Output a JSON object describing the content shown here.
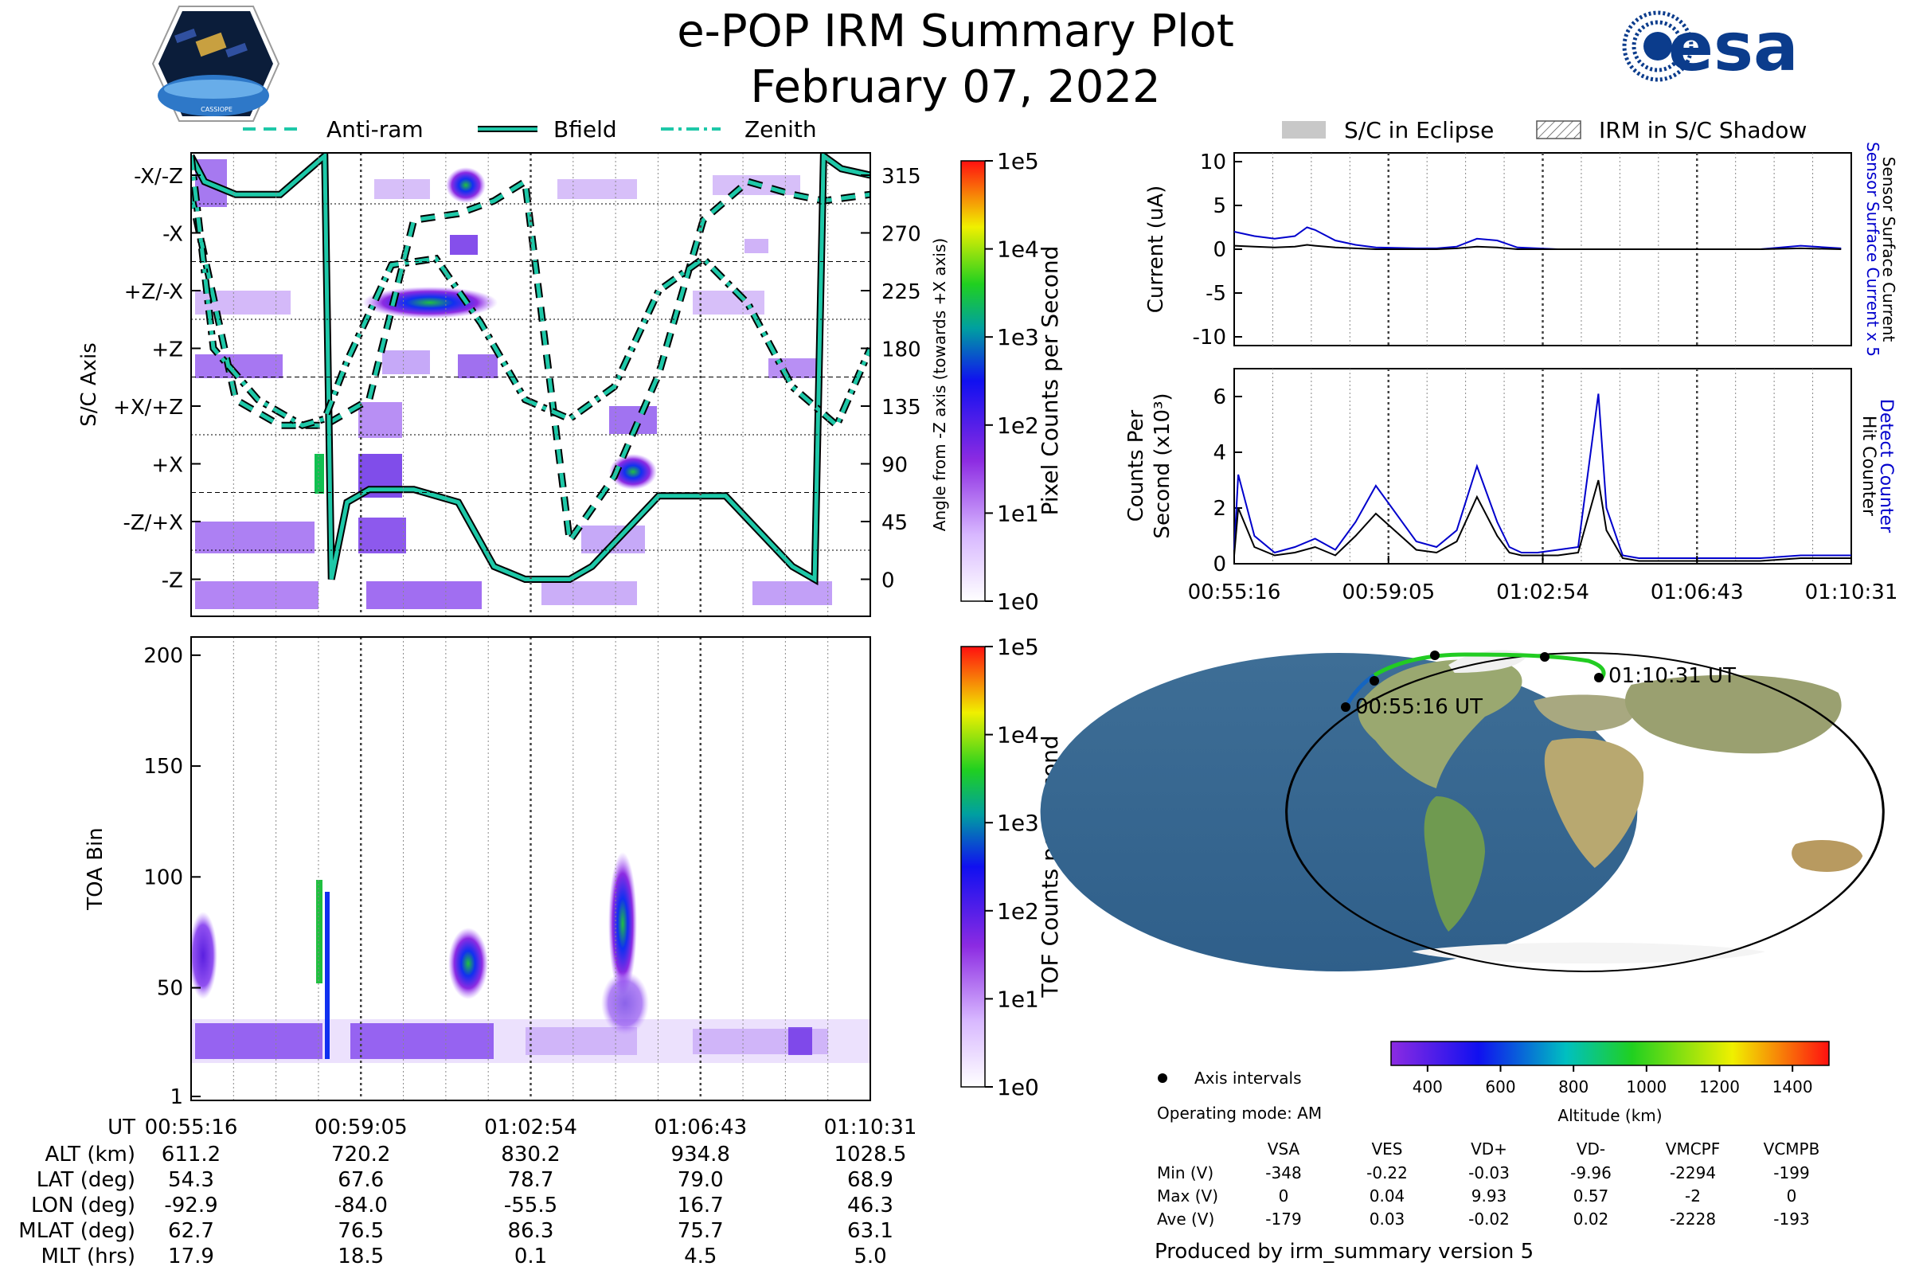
{
  "header": {
    "title": "e-POP IRM Summary Plot",
    "date": "February 07, 2022",
    "mission_logo_text": "CASSIOPE",
    "agency_logo_text": "esa"
  },
  "colors": {
    "accent_teal": "#1ec8a8",
    "eclipse_gray": "#c8c8c8",
    "surface_current": "#0000cc",
    "counter_blue": "#0000cc",
    "track_blue": "#1565c0",
    "track_green": "#22cc22"
  },
  "legends": {
    "left_top": [
      "Anti-ram",
      "Bfield",
      "Zenith"
    ],
    "right_top": [
      "S/C in Eclipse",
      "IRM in S/C Shadow"
    ]
  },
  "time_axis": {
    "ut_label": "UT",
    "ut_ticks": [
      "00:55:16",
      "00:59:05",
      "01:02:54",
      "01:06:43",
      "01:10:31"
    ],
    "rows": [
      {
        "label": "ALT (km)",
        "values": [
          "611.2",
          "720.2",
          "830.2",
          "934.8",
          "1028.5"
        ]
      },
      {
        "label": "LAT (deg)",
        "values": [
          "54.3",
          "67.6",
          "78.7",
          "79.0",
          "68.9"
        ]
      },
      {
        "label": "LON (deg)",
        "values": [
          "-92.9",
          "-84.0",
          "-55.5",
          "16.7",
          "46.3"
        ]
      },
      {
        "label": "MLAT (deg)",
        "values": [
          "62.7",
          "76.5",
          "86.3",
          "75.7",
          "63.1"
        ]
      },
      {
        "label": "MLT (hrs)",
        "values": [
          "17.9",
          "18.5",
          "0.1",
          "4.5",
          "5.0"
        ]
      }
    ]
  },
  "axis_panel": {
    "ylabel": "S/C Axis",
    "categories": [
      "-X/-Z",
      "-X",
      "+Z/-X",
      "+Z",
      "+X/+Z",
      "+X",
      "-Z/+X",
      "-Z"
    ],
    "right_ticks": [
      "315",
      "270",
      "225",
      "180",
      "135",
      "90",
      "45",
      "0"
    ],
    "right_label": "Angle from -Z axis (towards +X axis)",
    "colorbar_label": "Pixel Counts per Second",
    "colorbar_ticks": [
      "1e5",
      "1e4",
      "1e3",
      "1e2",
      "1e1",
      "1e0"
    ]
  },
  "toa_panel": {
    "ylabel": "TOA Bin",
    "yticks": [
      "200",
      "150",
      "100",
      "50",
      "1"
    ],
    "colorbar_label": "TOF Counts per Second",
    "colorbar_ticks": [
      "1e5",
      "1e4",
      "1e3",
      "1e2",
      "1e1",
      "1e0"
    ]
  },
  "current_panel": {
    "ylabel": "Current (uA)",
    "yticks": [
      "10",
      "5",
      "0",
      "-5",
      "-10"
    ],
    "right_label_blue": "Sensor Surface Current x 5",
    "right_label_black": "Sensor Surface Current"
  },
  "counts_panel": {
    "ylabel_line1": "Counts Per",
    "ylabel_line2": "Second (x10³)",
    "yticks": [
      "6",
      "4",
      "2",
      "0"
    ],
    "right_label_blue": "Detect Counter",
    "right_label_black": "Hit Counter",
    "xticks": [
      "00:55:16",
      "00:59:05",
      "01:02:54",
      "01:06:43",
      "01:10:31"
    ]
  },
  "map": {
    "start_label": "00:55:16 UT",
    "end_label": "01:10:31 UT",
    "altitude_label": "Altitude (km)",
    "altitude_ticks": [
      "400",
      "600",
      "800",
      "1000",
      "1200",
      "1400"
    ],
    "legend_axis_intervals": "Axis intervals",
    "operating_mode": "Operating mode: AM"
  },
  "voltage_table": {
    "columns": [
      "VSA",
      "VES",
      "VD+",
      "VD-",
      "VMCPF",
      "VCMPB"
    ],
    "rows": [
      {
        "label": "Min (V)",
        "values": [
          "-348",
          "-0.22",
          "-0.03",
          "-9.96",
          "-2294",
          "-199"
        ]
      },
      {
        "label": "Max (V)",
        "values": [
          "0",
          "0.04",
          "9.93",
          "0.57",
          "-2",
          "0"
        ]
      },
      {
        "label": "Ave (V)",
        "values": [
          "-179",
          "0.03",
          "-0.02",
          "0.02",
          "-2228",
          "-193"
        ]
      }
    ]
  },
  "footer": {
    "produced_by": "Produced by irm_summary version 5"
  },
  "chart_data": [
    {
      "type": "heatmap",
      "title": "S/C Axis pixel counts",
      "ylabel": "S/C Axis",
      "categories": [
        "-X/-Z",
        "-X",
        "+Z/-X",
        "+Z",
        "+X/+Z",
        "+X",
        "-Z/+X",
        "-Z"
      ],
      "xlim_minutes": [
        0,
        15.25
      ],
      "color_scale": [
        1,
        100000
      ],
      "series": [
        {
          "name": "Anti-ram",
          "x": [
            0,
            1,
            2,
            3,
            4,
            5,
            6,
            6.8,
            7.5,
            8.5,
            9.5,
            10.5,
            11.5,
            12.5,
            13.5,
            14.2,
            15.25
          ],
          "y": [
            300,
            140,
            120,
            120,
            140,
            280,
            285,
            295,
            310,
            30,
            80,
            160,
            280,
            310,
            300,
            295,
            300
          ]
        },
        {
          "name": "Bfield",
          "x": [
            0,
            0.3,
            1,
            2,
            3,
            3.15,
            3.5,
            4,
            5,
            6,
            6.8,
            7.5,
            8.5,
            9,
            10.5,
            12,
            13.5,
            14,
            14.2,
            14.6,
            15.25
          ],
          "y": [
            330,
            310,
            300,
            300,
            330,
            0,
            60,
            70,
            70,
            60,
            10,
            0,
            0,
            10,
            65,
            65,
            10,
            0,
            330,
            320,
            315
          ]
        },
        {
          "name": "Zenith",
          "x": [
            0,
            0.5,
            1.5,
            2.5,
            3,
            3.5,
            4.5,
            5.5,
            6.5,
            7.5,
            8.5,
            9.5,
            10.5,
            11.5,
            12.5,
            13.5,
            14.5,
            15.25
          ],
          "y": [
            330,
            180,
            140,
            120,
            125,
            170,
            245,
            250,
            200,
            140,
            125,
            150,
            225,
            250,
            215,
            150,
            120,
            180
          ]
        }
      ]
    },
    {
      "type": "heatmap",
      "title": "TOA Bin TOF counts",
      "ylabel": "TOA Bin",
      "ylim": [
        1,
        210
      ],
      "xlim_minutes": [
        0,
        15.25
      ],
      "color_scale": [
        1,
        100000
      ]
    },
    {
      "type": "line",
      "title": "Sensor Surface Current",
      "ylabel": "Current (uA)",
      "ylim": [
        -11,
        11
      ],
      "x_minutes": [
        0,
        0.5,
        1,
        1.5,
        1.8,
        2,
        2.5,
        3,
        3.5,
        4.5,
        5,
        5.5,
        6,
        6.5,
        7,
        7.5,
        8,
        9,
        10,
        11,
        12,
        13,
        14,
        15
      ],
      "series": [
        {
          "name": "Sensor Surface Current x 5",
          "values": [
            2.0,
            1.5,
            1.2,
            1.5,
            2.5,
            2.2,
            1.0,
            0.5,
            0.2,
            0.1,
            0.1,
            0.3,
            1.2,
            1.0,
            0.2,
            0.1,
            0,
            0,
            0,
            0,
            0,
            0,
            0.4,
            0.1
          ]
        },
        {
          "name": "Sensor Surface Current",
          "values": [
            0.4,
            0.3,
            0.2,
            0.3,
            0.5,
            0.4,
            0.2,
            0.1,
            0,
            0,
            0,
            0.1,
            0.3,
            0.2,
            0,
            0,
            0,
            0,
            0,
            0,
            0,
            0,
            0.1,
            0
          ]
        }
      ]
    },
    {
      "type": "line",
      "title": "Counts Per Second",
      "ylabel": "Counts Per Second (x10³)",
      "ylim": [
        0,
        7
      ],
      "x_minutes": [
        0,
        0.1,
        0.5,
        1,
        1.5,
        2,
        2.5,
        3,
        3.5,
        4.5,
        5,
        5.5,
        6,
        6.5,
        6.8,
        7.1,
        7.5,
        8,
        8.5,
        9,
        9.2,
        9.6,
        10,
        11,
        12,
        13,
        14,
        15.25
      ],
      "series": [
        {
          "name": "Detect Counter",
          "values": [
            0.5,
            3.2,
            1.0,
            0.4,
            0.6,
            0.9,
            0.5,
            1.5,
            2.8,
            0.8,
            0.6,
            1.2,
            3.5,
            1.5,
            0.6,
            0.4,
            0.4,
            0.5,
            0.6,
            6.1,
            2.0,
            0.3,
            0.2,
            0.2,
            0.2,
            0.2,
            0.3,
            0.3
          ]
        },
        {
          "name": "Hit Counter",
          "values": [
            0.3,
            2.0,
            0.6,
            0.3,
            0.4,
            0.6,
            0.3,
            1.0,
            1.8,
            0.5,
            0.4,
            0.8,
            2.4,
            1.0,
            0.4,
            0.3,
            0.3,
            0.3,
            0.4,
            3.0,
            1.2,
            0.2,
            0.1,
            0.1,
            0.1,
            0.1,
            0.2,
            0.2
          ]
        }
      ]
    }
  ]
}
